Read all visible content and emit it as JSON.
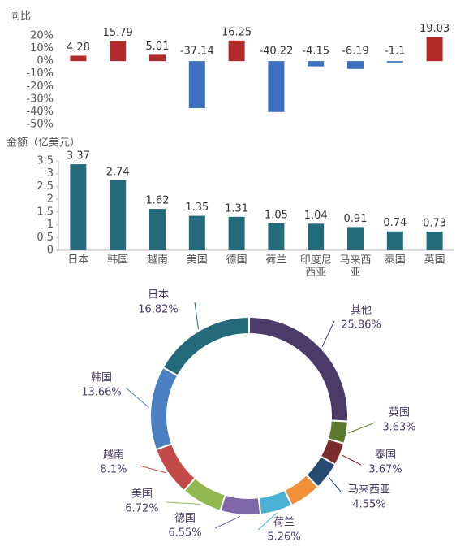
{
  "chart_data": [
    {
      "type": "bar",
      "ylabel": "同比",
      "values": [
        4.28,
        15.79,
        5.01,
        -37.14,
        16.25,
        -40.22,
        -4.15,
        -6.19,
        -1.1,
        19.03
      ],
      "colors": {
        "positive": "#b22b2b",
        "negative": "#3b6fbf"
      },
      "ylim": [
        -50,
        20
      ],
      "yticks": [
        {
          "value": 20,
          "label": "20%"
        },
        {
          "value": 10,
          "label": "10%"
        },
        {
          "value": 0,
          "label": "0%"
        },
        {
          "value": -10,
          "label": "-10%"
        },
        {
          "value": -20,
          "label": "-20%"
        },
        {
          "value": -30,
          "label": "-30%"
        },
        {
          "value": -40,
          "label": "-40%"
        },
        {
          "value": -50,
          "label": "-50%"
        }
      ],
      "grid": false
    },
    {
      "type": "bar",
      "ylabel": "金额（亿美元）",
      "categories": [
        "日本",
        "韩国",
        "越南",
        "美国",
        "德国",
        "荷兰",
        "印度尼西亚",
        "马来西亚",
        "泰国",
        "英国"
      ],
      "values": [
        3.37,
        2.74,
        1.62,
        1.35,
        1.31,
        1.05,
        1.04,
        0.91,
        0.74,
        0.73
      ],
      "color": "#236b7b",
      "ylim": [
        0,
        3.5
      ],
      "yticks": [
        0,
        0.5,
        1,
        1.5,
        2,
        2.5,
        3,
        3.5
      ],
      "grid": false
    },
    {
      "type": "pie",
      "donut": true,
      "categories": [
        "其他",
        "英国",
        "泰国",
        "马来西亚",
        null,
        "荷兰",
        "德国",
        "美国",
        "越南",
        "韩国",
        "日本"
      ],
      "values": [
        25.86,
        3.63,
        3.67,
        4.55,
        5.18,
        5.26,
        6.55,
        6.72,
        8.1,
        13.66,
        16.82
      ],
      "value_labels": [
        "25.86%",
        "3.63%",
        "3.67%",
        "4.55%",
        null,
        "5.26%",
        "6.55%",
        "6.72%",
        "8.1%",
        "13.66%",
        "16.82%"
      ],
      "colors": [
        "#4a3b68",
        "#5b7a2f",
        "#7a2b2b",
        "#274a72",
        "#f0903a",
        "#49b2d2",
        "#8067a9",
        "#92b84f",
        "#c24b48",
        "#4a80c2",
        "#236b7b"
      ]
    }
  ]
}
